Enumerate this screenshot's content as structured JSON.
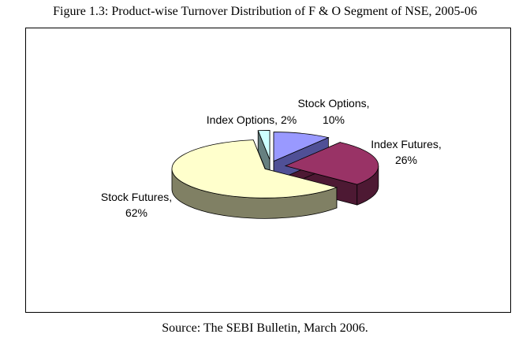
{
  "figure": {
    "title": "Figure 1.3: Product-wise Turnover Distribution of F & O Segment of NSE, 2005-06",
    "source": "Source: The SEBI Bulletin, March 2006."
  },
  "chart_data": {
    "type": "pie",
    "style": "3d-exploded",
    "title": "",
    "legend": "none",
    "slices": [
      {
        "label": "Stock Options,",
        "pct_label": "10%",
        "value": 10,
        "top_color": "#9999ff",
        "side_color": "#505096"
      },
      {
        "label": "Index Futures,",
        "pct_label": "26%",
        "value": 26,
        "top_color": "#993366",
        "side_color": "#4d1933"
      },
      {
        "label": "Stock Futures,",
        "pct_label": "62%",
        "value": 62,
        "top_color": "#ffffcc",
        "side_color": "#808064"
      },
      {
        "label": "Index Options, 2%",
        "pct_label": "",
        "value": 2,
        "top_color": "#ccffff",
        "side_color": "#668080"
      }
    ]
  }
}
